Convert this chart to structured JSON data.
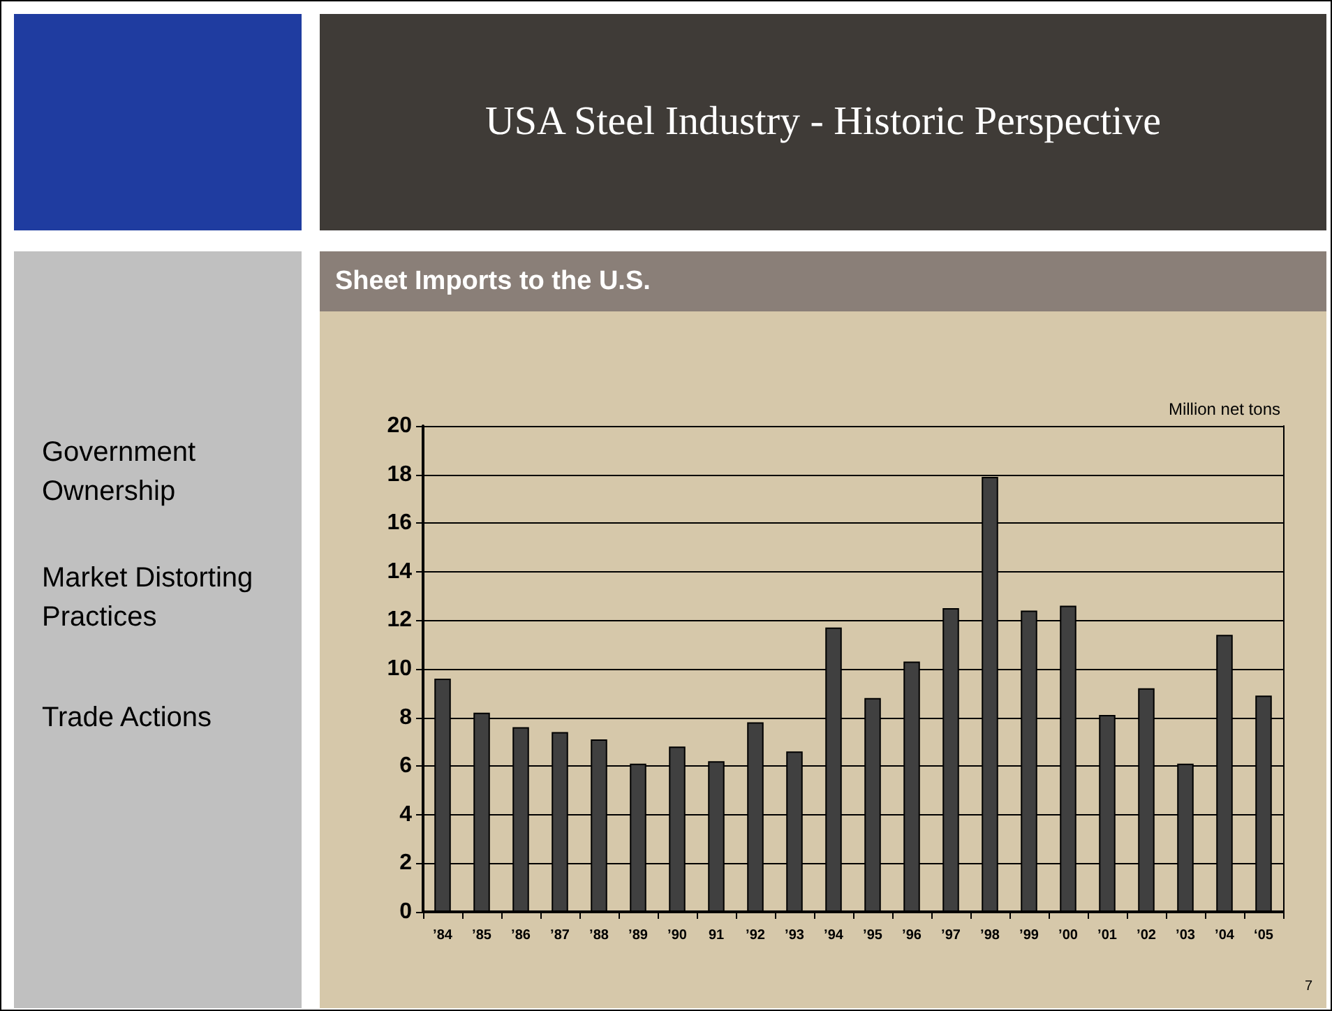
{
  "chart_data": {
    "type": "bar",
    "title": "USA Steel Industry - Historic Perspective",
    "subtitle": "Sheet Imports to the U.S.",
    "ylabel": "Million net tons",
    "annotations": [
      "Government Ownership",
      "Market Distorting Practices",
      "Trade Actions",
      "7"
    ],
    "categories": [
      "’84",
      "’85",
      "’86",
      "’87",
      "’88",
      "’89",
      "’90",
      "91",
      "’92",
      "’93",
      "’94",
      "’95",
      "’96",
      "’97",
      "’98",
      "’99",
      "’00",
      "’01",
      "’02",
      "’03",
      "’04",
      "‘05"
    ],
    "values": [
      9.6,
      8.2,
      7.6,
      7.4,
      7.1,
      6.1,
      6.8,
      6.2,
      7.8,
      6.6,
      11.7,
      8.8,
      10.3,
      12.5,
      17.9,
      12.4,
      12.6,
      8.1,
      9.2,
      6.1,
      11.4,
      8.9
    ],
    "color": "#404040",
    "ylim": [
      0,
      20
    ],
    "yticks": [
      0,
      2,
      4,
      6,
      8,
      10,
      12,
      14,
      16,
      18,
      20
    ],
    "grid": "y"
  }
}
